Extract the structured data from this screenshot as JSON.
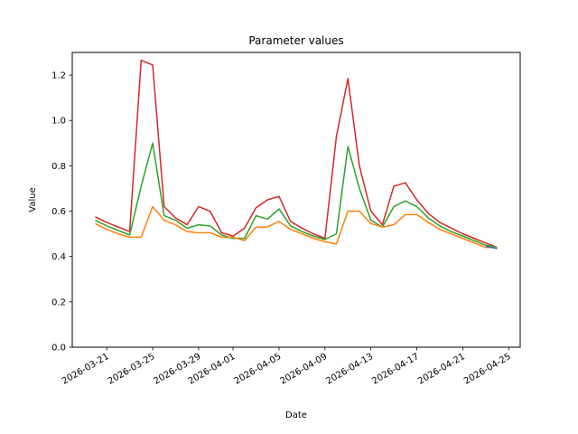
{
  "chart_data": {
    "type": "line",
    "title": "Parameter values",
    "xlabel": "Date",
    "ylabel": "Value",
    "x": [
      "2026-03-20",
      "2026-03-21",
      "2026-03-22",
      "2026-03-23",
      "2026-03-24",
      "2026-03-25",
      "2026-03-26",
      "2026-03-27",
      "2026-03-28",
      "2026-03-29",
      "2026-03-30",
      "2026-03-31",
      "2026-04-01",
      "2026-04-02",
      "2026-04-03",
      "2026-04-04",
      "2026-04-05",
      "2026-04-06",
      "2026-04-07",
      "2026-04-08",
      "2026-04-09",
      "2026-04-10",
      "2026-04-11",
      "2026-04-12",
      "2026-04-13",
      "2026-04-14",
      "2026-04-15",
      "2026-04-16",
      "2026-04-17",
      "2026-04-18",
      "2026-04-19",
      "2026-04-20",
      "2026-04-21",
      "2026-04-22",
      "2026-04-23",
      "2026-04-24"
    ],
    "x_range": [
      "2026-03-18",
      "2026-04-26"
    ],
    "ylim": [
      0,
      1.3
    ],
    "x_ticks": [
      "2026-03-21",
      "2026-03-25",
      "2026-03-29",
      "2026-04-01",
      "2026-04-05",
      "2026-04-09",
      "2026-04-13",
      "2026-04-17",
      "2026-04-21",
      "2026-04-25"
    ],
    "y_ticks": [
      "0.0",
      "0.2",
      "0.4",
      "0.6",
      "0.8",
      "1.0",
      "1.2"
    ],
    "series": [
      {
        "color": "#d62728",
        "values": [
          0.575,
          0.55,
          0.53,
          0.51,
          1.265,
          1.245,
          0.62,
          0.57,
          0.54,
          0.62,
          0.6,
          0.505,
          0.49,
          0.525,
          0.615,
          0.65,
          0.665,
          0.555,
          0.525,
          0.5,
          0.48,
          0.93,
          1.185,
          0.8,
          0.6,
          0.54,
          0.71,
          0.725,
          0.65,
          0.59,
          0.55,
          0.525,
          0.5,
          0.48,
          0.46,
          0.44
        ]
      },
      {
        "color": "#2ca02c",
        "values": [
          0.56,
          0.535,
          0.515,
          0.495,
          0.71,
          0.9,
          0.58,
          0.56,
          0.525,
          0.54,
          0.535,
          0.495,
          0.48,
          0.48,
          0.58,
          0.565,
          0.61,
          0.535,
          0.51,
          0.49,
          0.475,
          0.5,
          0.885,
          0.7,
          0.56,
          0.53,
          0.62,
          0.645,
          0.62,
          0.57,
          0.535,
          0.51,
          0.49,
          0.47,
          0.45,
          0.44
        ]
      },
      {
        "color": "#ff7f0e",
        "values": [
          0.545,
          0.52,
          0.5,
          0.485,
          0.485,
          0.62,
          0.56,
          0.54,
          0.51,
          0.505,
          0.505,
          0.485,
          0.485,
          0.47,
          0.53,
          0.53,
          0.555,
          0.52,
          0.5,
          0.48,
          0.465,
          0.455,
          0.6,
          0.6,
          0.545,
          0.53,
          0.54,
          0.585,
          0.585,
          0.55,
          0.52,
          0.5,
          0.48,
          0.46,
          0.44,
          0.44
        ]
      },
      {
        "color": "#1f77b4",
        "values": [
          null,
          null,
          null,
          null,
          null,
          null,
          null,
          null,
          null,
          null,
          null,
          null,
          null,
          null,
          null,
          null,
          null,
          null,
          null,
          null,
          null,
          null,
          null,
          null,
          null,
          null,
          null,
          null,
          null,
          null,
          null,
          null,
          null,
          null,
          0.445,
          0.435
        ]
      }
    ]
  }
}
